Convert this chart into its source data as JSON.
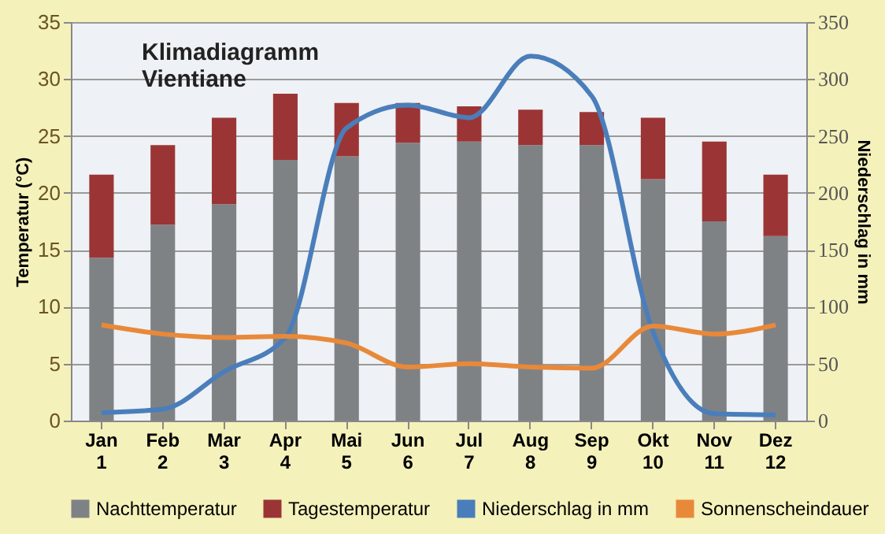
{
  "chart_data": {
    "type": "bar",
    "title": "Klimadiagramm\nVientiane",
    "ylabel": "Temperatur (°C)",
    "y2label": "Niederschlag in mm",
    "categories": [
      "Jan\n1",
      "Feb\n2",
      "Mar\n3",
      "Apr\n4",
      "Mai\n5",
      "Jun\n6",
      "Jul\n7",
      "Aug\n8",
      "Sep\n9",
      "Okt\n10",
      "Nov\n11",
      "Dez\n12"
    ],
    "stacked": true,
    "series": [
      {
        "name": "Nachttemperatur",
        "color": "#7f8285",
        "values": [
          14.3,
          17.2,
          19.0,
          22.9,
          23.2,
          24.4,
          24.5,
          24.2,
          24.2,
          21.2,
          17.5,
          16.2
        ]
      },
      {
        "name": "Tagestemperatur",
        "color": "#9b3535",
        "values": [
          7.3,
          7.0,
          7.6,
          5.8,
          4.7,
          3.5,
          3.1,
          3.1,
          2.9,
          5.4,
          7.0,
          5.4
        ]
      },
      {
        "name": "Niederschlag in mm",
        "type": "line",
        "axis": "y2",
        "color": "#4a7ebb",
        "values": [
          7,
          10,
          43,
          73,
          257,
          277,
          266,
          320,
          285,
          78,
          6,
          5
        ]
      },
      {
        "name": "Sonnenscheindauer",
        "type": "line",
        "axis": "y2",
        "color": "#e8893a",
        "values": [
          84,
          76,
          73,
          74,
          68,
          47,
          50,
          47,
          46,
          83,
          76,
          84
        ]
      }
    ],
    "ylim": [
      0,
      35
    ],
    "yticks": [
      0,
      5,
      10,
      15,
      20,
      25,
      30,
      35
    ],
    "y2lim": [
      0,
      350
    ],
    "y2ticks": [
      0,
      50,
      100,
      150,
      200,
      250,
      300,
      350
    ],
    "grid": "y",
    "legend": "bottom",
    "marker": "none",
    "line_style": "solid"
  }
}
